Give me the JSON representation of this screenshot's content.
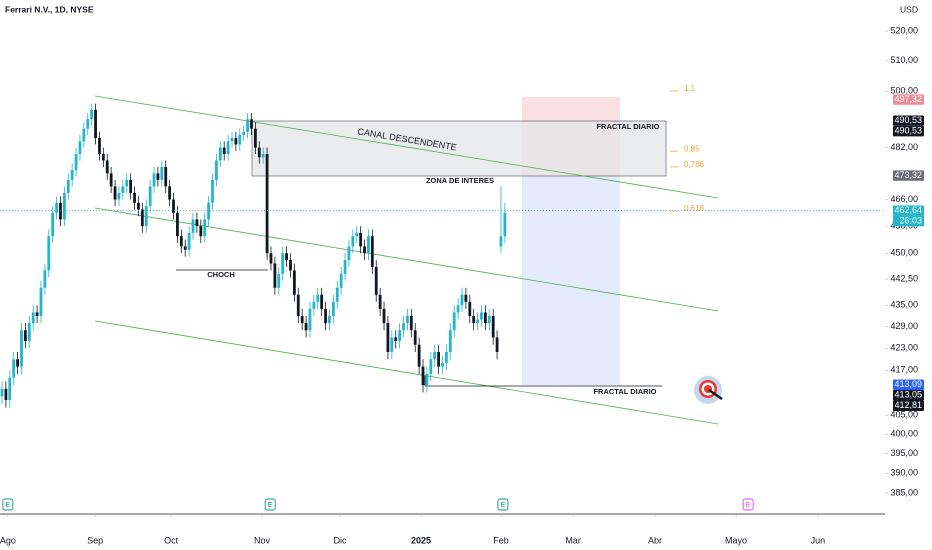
{
  "chart_data": {
    "type": "candlestick",
    "title": "Ferrari N.V., 1D, NYSE",
    "currency": "USD",
    "log_scale": true,
    "xlim": [
      0,
      226
    ],
    "xticks": [
      {
        "value": 1.5,
        "label": "Ago"
      },
      {
        "value": 23.9,
        "label": "Sep"
      },
      {
        "value": 43.4,
        "label": "Oct"
      },
      {
        "value": 66.7,
        "label": "Nov"
      },
      {
        "value": 86.7,
        "label": "Dic"
      },
      {
        "value": 107.5,
        "label": "2025"
      },
      {
        "value": 128,
        "label": "Feb"
      },
      {
        "value": 146.5,
        "label": "Mar"
      },
      {
        "value": 167.5,
        "label": "Abr"
      },
      {
        "value": 188.3,
        "label": "Mayo"
      },
      {
        "value": 209.3,
        "label": "Jun"
      }
    ],
    "ylim": [
      385,
      520
    ],
    "yticks": [
      {
        "value": 520,
        "label": "520,00"
      },
      {
        "value": 510,
        "label": "510,00"
      },
      {
        "value": 500,
        "label": "500,00"
      },
      {
        "value": 482,
        "label": "482,00"
      },
      {
        "value": 466,
        "label": "466,00"
      },
      {
        "value": 458,
        "label": "458,00"
      },
      {
        "value": 450,
        "label": "450,00"
      },
      {
        "value": 442.5,
        "label": "442,50"
      },
      {
        "value": 435,
        "label": "435,00"
      },
      {
        "value": 429,
        "label": "429,00"
      },
      {
        "value": 423,
        "label": "423,00"
      },
      {
        "value": 417,
        "label": "417,00"
      },
      {
        "value": 405,
        "label": "405,00"
      },
      {
        "value": 400,
        "label": "400,00"
      },
      {
        "value": 395,
        "label": "395,00"
      },
      {
        "value": 390,
        "label": "390,00"
      },
      {
        "value": 385,
        "label": "385,00"
      }
    ],
    "up_color": "#22b5cc",
    "down_color": "#131722",
    "open": [
      410,
      412,
      409,
      415,
      420,
      418,
      428,
      425,
      430,
      433,
      432,
      440,
      445,
      455,
      462,
      465,
      460,
      468,
      472,
      475,
      480,
      484,
      488,
      491,
      494,
      485,
      480,
      478,
      474,
      470,
      466,
      468,
      470,
      472,
      468,
      465,
      463,
      458,
      464,
      470,
      474,
      472,
      476,
      470,
      466,
      462,
      455,
      452,
      451,
      456,
      460,
      458,
      455,
      460,
      465,
      472,
      478,
      482,
      480,
      484,
      485,
      483,
      486,
      487,
      491,
      488,
      482,
      479,
      480,
      450,
      447,
      440,
      444,
      450,
      448,
      445,
      438,
      432,
      430,
      428,
      434,
      436,
      438,
      434,
      430,
      432,
      436,
      440,
      444,
      448,
      452,
      455,
      456,
      452,
      450,
      455,
      446,
      438,
      434,
      430,
      422,
      426,
      425,
      428,
      430,
      432,
      428,
      424,
      418,
      413,
      416,
      420,
      422,
      418,
      419,
      422,
      428,
      433,
      435,
      438,
      436,
      432,
      430,
      431,
      433,
      430,
      432,
      426,
      452,
      455
    ],
    "high": [
      414,
      414,
      417,
      422,
      422,
      430,
      430,
      432,
      435,
      435,
      442,
      447,
      457,
      464,
      467,
      467,
      470,
      474,
      477,
      482,
      486,
      490,
      493,
      496,
      496,
      487,
      482,
      480,
      476,
      472,
      470,
      472,
      474,
      474,
      470,
      467,
      465,
      466,
      472,
      476,
      476,
      478,
      478,
      472,
      468,
      464,
      457,
      454,
      458,
      462,
      462,
      460,
      462,
      467,
      474,
      480,
      484,
      484,
      486,
      487,
      487,
      488,
      489,
      493,
      493,
      490,
      484,
      482,
      482,
      452,
      449,
      446,
      452,
      452,
      450,
      447,
      440,
      434,
      432,
      436,
      438,
      440,
      440,
      436,
      434,
      438,
      442,
      446,
      450,
      454,
      457,
      458,
      458,
      454,
      457,
      457,
      448,
      440,
      436,
      432,
      428,
      428,
      430,
      432,
      434,
      434,
      430,
      426,
      420,
      418,
      422,
      424,
      424,
      421,
      424,
      430,
      435,
      437,
      440,
      440,
      438,
      434,
      433,
      435,
      435,
      434,
      434,
      428,
      470,
      465
    ],
    "low": [
      408,
      407,
      407,
      413,
      416,
      416,
      423,
      423,
      428,
      430,
      430,
      438,
      443,
      453,
      460,
      458,
      458,
      466,
      470,
      473,
      478,
      482,
      486,
      489,
      483,
      478,
      476,
      472,
      468,
      464,
      464,
      466,
      468,
      466,
      463,
      461,
      456,
      456,
      462,
      468,
      470,
      470,
      468,
      464,
      460,
      453,
      450,
      449,
      449,
      454,
      456,
      453,
      453,
      458,
      463,
      470,
      476,
      478,
      478,
      482,
      481,
      481,
      484,
      485,
      486,
      480,
      477,
      477,
      448,
      445,
      438,
      438,
      442,
      446,
      443,
      436,
      430,
      428,
      426,
      426,
      432,
      434,
      432,
      428,
      428,
      430,
      434,
      438,
      442,
      446,
      450,
      453,
      450,
      448,
      448,
      444,
      436,
      432,
      428,
      420,
      420,
      423,
      423,
      426,
      428,
      426,
      422,
      416,
      411,
      411,
      414,
      418,
      416,
      416,
      417,
      420,
      426,
      431,
      433,
      434,
      430,
      428,
      428,
      429,
      428,
      428,
      424,
      420,
      450,
      453
    ],
    "close": [
      412,
      409,
      415,
      420,
      418,
      428,
      425,
      430,
      433,
      432,
      440,
      445,
      455,
      462,
      465,
      460,
      468,
      472,
      475,
      480,
      484,
      488,
      491,
      494,
      485,
      480,
      478,
      474,
      470,
      466,
      468,
      470,
      472,
      468,
      465,
      463,
      458,
      464,
      470,
      474,
      472,
      476,
      470,
      466,
      462,
      455,
      452,
      451,
      456,
      460,
      458,
      455,
      460,
      465,
      472,
      478,
      482,
      480,
      484,
      485,
      483,
      486,
      487,
      491,
      488,
      482,
      479,
      480,
      450,
      447,
      440,
      444,
      450,
      448,
      445,
      438,
      432,
      430,
      428,
      434,
      436,
      438,
      434,
      430,
      432,
      436,
      440,
      444,
      448,
      452,
      455,
      456,
      452,
      450,
      455,
      446,
      438,
      434,
      430,
      422,
      426,
      425,
      428,
      430,
      432,
      428,
      424,
      418,
      413,
      416,
      420,
      422,
      418,
      419,
      422,
      428,
      433,
      435,
      438,
      436,
      432,
      430,
      431,
      433,
      430,
      432,
      426,
      422,
      455,
      462
    ],
    "price_labels": [
      {
        "value": 497.32,
        "label": "497,32",
        "color": "#f08c95"
      },
      {
        "value": 490.53,
        "label": "490,53",
        "color": "#131722"
      },
      {
        "value": 490.53,
        "label": "490,53",
        "color": "#131722"
      },
      {
        "value": 473.32,
        "label": "473,32",
        "color": "#6a6d78"
      },
      {
        "value": 462.64,
        "label": "462,64",
        "color": "#22b5cc"
      },
      {
        "value": 413.09,
        "label": "413,09",
        "color": "#2962ff"
      },
      {
        "value": 413.05,
        "label": "413,05",
        "color": "#131722"
      },
      {
        "value": 412.81,
        "label": "412,81",
        "color": "#131722"
      }
    ],
    "countdown": "26:03",
    "fib_levels": [
      {
        "value": 500.1,
        "label": "1,1"
      },
      {
        "value": 480.9,
        "label": "0,85"
      },
      {
        "value": 476,
        "label": "0,786"
      },
      {
        "value": 462.5,
        "label": "0,618"
      }
    ],
    "fib_color": "#f0a330",
    "annotations": {
      "fractal_top": "FRACTAL DIARIO",
      "zone": "ZONA DE INTERES",
      "channel": "CANAL DESCENDENTE",
      "choch": "CHOCH",
      "fractal_bottom": "FRACTAL DIARIO"
    },
    "events": [
      {
        "x": 1.5,
        "label": "E",
        "color": "#089981"
      },
      {
        "x": 68.8,
        "label": "E",
        "color": "#089981"
      },
      {
        "x": 128.5,
        "label": "E",
        "color": "#089981"
      },
      {
        "x": 191.4,
        "label": "E",
        "color": "#e040fb"
      }
    ]
  }
}
